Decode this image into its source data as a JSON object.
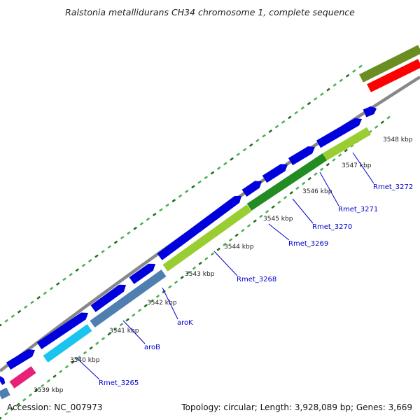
{
  "title": "Ralstonia metallidurans CH34 chromosome 1, complete sequence",
  "footer": {
    "accession": "Accession: NC_007973",
    "summary": "Topology: circular; Length: 3,928,089 bp; Genes: 3,669"
  },
  "ticks": [
    "3539 kbp",
    "3540 kbp",
    "3541 kbp",
    "3542 kbp",
    "3543 kbp",
    "3544 kbp",
    "3545 kbp",
    "3546 kbp",
    "3547 kbp",
    "3548 kbp"
  ],
  "gene_labels": [
    "Rmet_3265",
    "aroB",
    "aroK",
    "Rmet_3268",
    "Rmet_3269",
    "Rmet_3270",
    "Rmet_3271",
    "Rmet_3272"
  ],
  "colors": {
    "backbone": "#888888",
    "forward_cds": "#0000dd",
    "dots_dark": "#1a6e1a",
    "dots_light": "#4caf50",
    "label": "#0000cc",
    "olive": "#6b8e23",
    "red": "#ff0000",
    "magenta": "#e8207a",
    "cyan": "#19c4ef",
    "steelblue": "#4f7fb0",
    "lime": "#9acd32",
    "green": "#228b22"
  }
}
